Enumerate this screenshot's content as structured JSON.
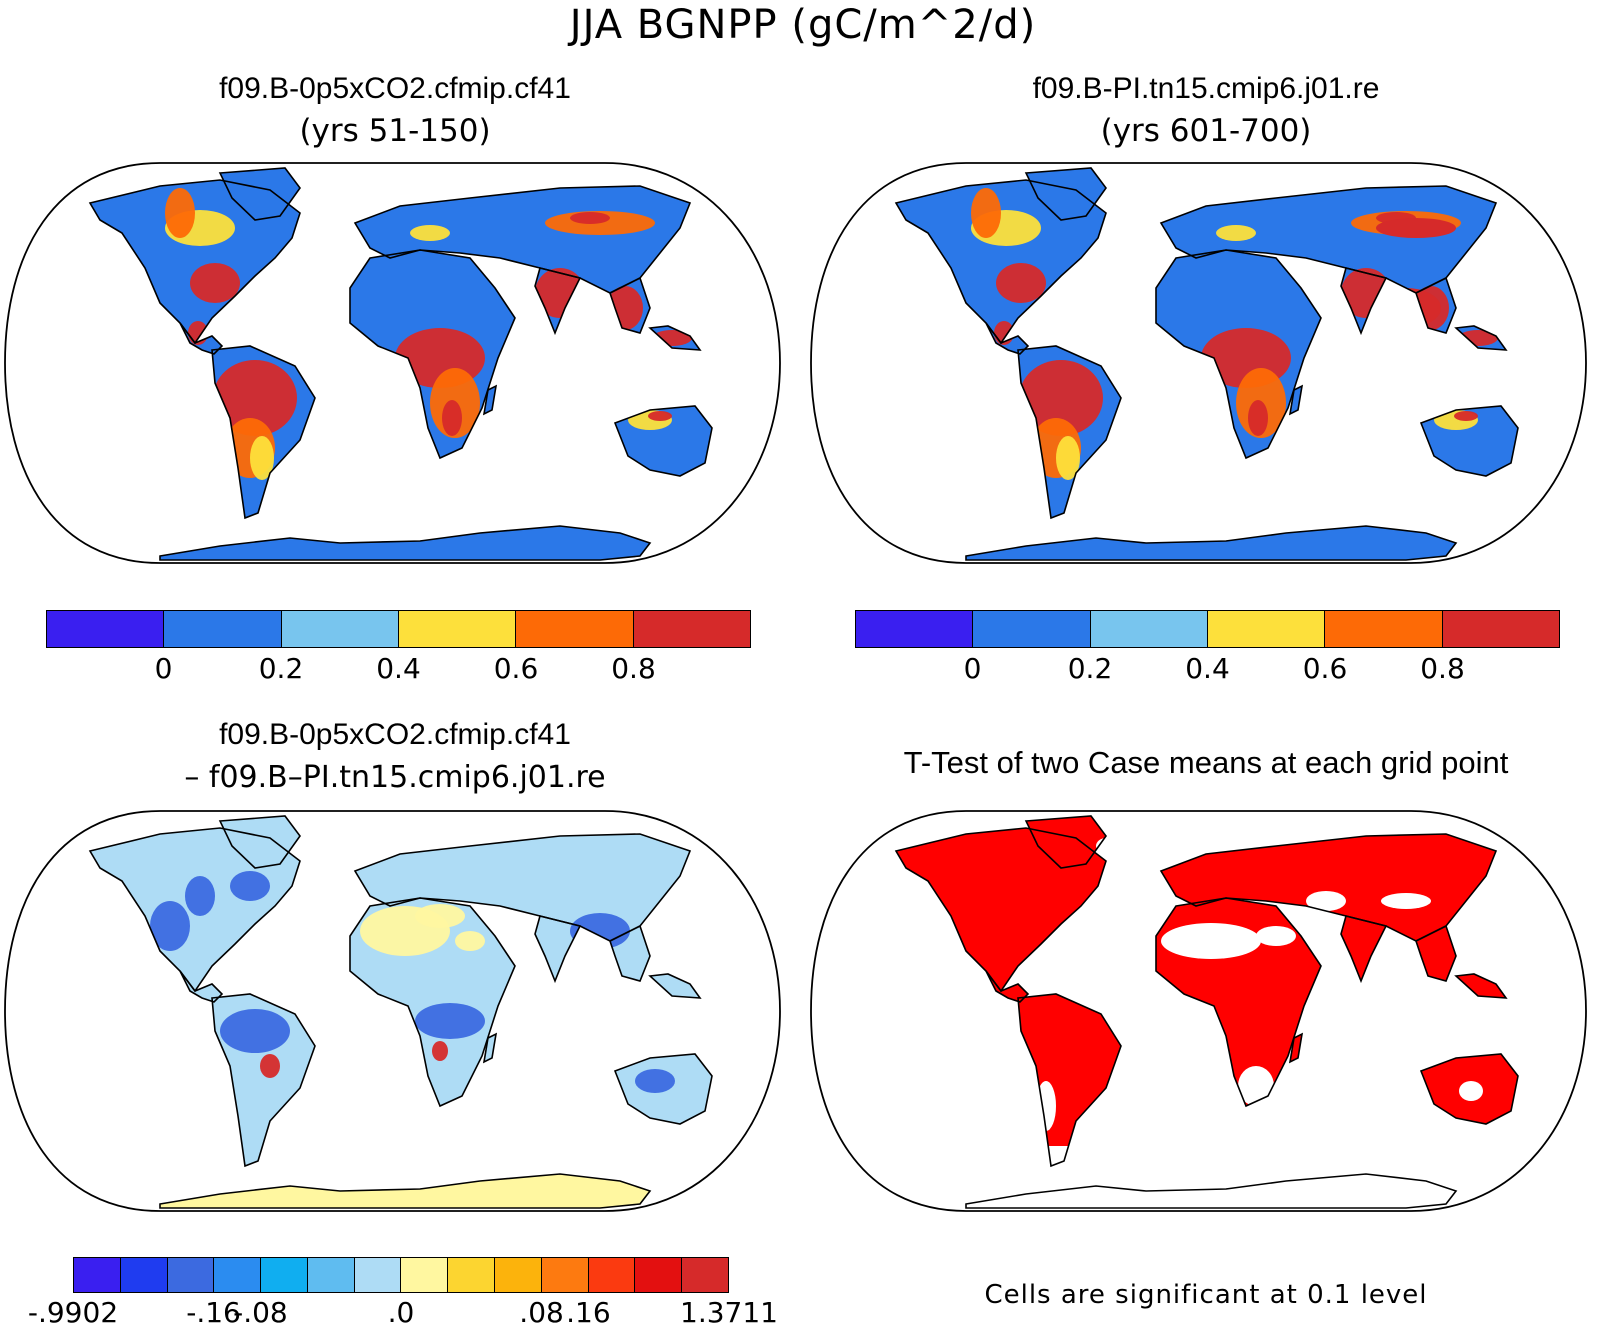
{
  "title": "JJA BGNPP (gC/m^2/d)",
  "panels": [
    {
      "title": "f09.B-0p5xCO2.cfmip.cf41",
      "subtitle": "(yrs 51-150)",
      "type": "field"
    },
    {
      "title": "f09.B-PI.tn15.cmip6.j01.re",
      "subtitle": "(yrs 601-700)",
      "type": "field"
    },
    {
      "title": "f09.B-0p5xCO2.cfmip.cf41",
      "subtitle": "– f09.B–PI.tn15.cmip6.j01.re",
      "type": "diff"
    },
    {
      "title": "T-Test of two Case means at each grid point",
      "subtitle": "",
      "type": "ttest"
    }
  ],
  "colorbar_fields": {
    "colors": [
      "#3a1ff0",
      "#2b78e8",
      "#78c5ee",
      "#fde03b",
      "#fd6a06",
      "#d62a2a"
    ],
    "labels": [
      "0",
      "0.2",
      "0.4",
      "0.6",
      "0.8"
    ]
  },
  "colorbar_diff": {
    "colors": [
      "#3a1ff0",
      "#1f3cf0",
      "#3c6ae0",
      "#2b8cf0",
      "#10aef0",
      "#5fbcf0",
      "#aedcf5",
      "#fff7a0",
      "#fcd530",
      "#fcb30c",
      "#fd7a10",
      "#fb3a10",
      "#e31010",
      "#d62a2a"
    ],
    "labels": [
      "-.9902",
      "-.16",
      "-.08",
      ".0",
      ".08",
      ".16",
      "1.3711"
    ],
    "label_boundaries": [
      0,
      3,
      4,
      7,
      10,
      11,
      14
    ]
  },
  "ttest_note": "Cells are significant at 0.1 level",
  "colors": {
    "ocean": "#ffffff",
    "field_land_base": "#2b78e8",
    "field_high": "#d62a2a",
    "field_mid": "#fd6a06",
    "field_yellow": "#fde03b",
    "diff_base": "#aedcf5",
    "diff_neg": "#3c6ae0",
    "diff_pos": "#fff7a0",
    "ttest_sig": "#ff0000"
  }
}
